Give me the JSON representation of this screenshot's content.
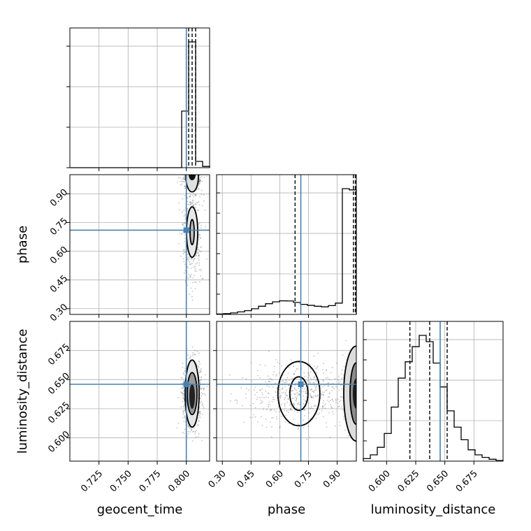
{
  "chart_data": {
    "type": "corner",
    "parameters": [
      "geocent_time",
      "phase",
      "luminosity_distance"
    ],
    "truths": {
      "geocent_time": 0.8,
      "phase": 0.71,
      "luminosity_distance": 0.646
    },
    "truth_color": "#4682b4",
    "grid": true,
    "labels": {
      "x": [
        "geocent_time",
        "phase",
        "luminosity_distance"
      ],
      "y": [
        "",
        "phase",
        "luminosity_distance"
      ]
    },
    "ticks": {
      "geocent_time": [
        "0.725",
        "0.750",
        "0.775",
        "0.800"
      ],
      "phase": [
        "0.30",
        "0.45",
        "0.60",
        "0.75",
        "0.90"
      ],
      "luminosity_distance": [
        "0.600",
        "0.625",
        "0.650",
        "0.675"
      ]
    },
    "ranges": {
      "geocent_time": [
        0.7,
        0.82
      ],
      "phase": [
        0.27,
        1.0
      ],
      "luminosity_distance": [
        0.58,
        0.7
      ]
    },
    "quantiles": {
      "geocent_time": [
        0.802,
        0.805,
        0.808
      ],
      "phase": [
        0.68,
        0.985,
        0.995
      ],
      "luminosity_distance": [
        0.62,
        0.637,
        0.652
      ]
    },
    "histograms": {
      "geocent_time": {
        "bin_edges": [
          0.7,
          0.706,
          0.712,
          0.718,
          0.724,
          0.73,
          0.736,
          0.742,
          0.748,
          0.754,
          0.76,
          0.766,
          0.772,
          0.778,
          0.784,
          0.79,
          0.796,
          0.802,
          0.808,
          0.814,
          0.82
        ],
        "counts": [
          0,
          0,
          0,
          0,
          0,
          0,
          0,
          0,
          0,
          0,
          0,
          0,
          0,
          0,
          0,
          0,
          0.45,
          1.0,
          0.05,
          0.01
        ]
      },
      "phase": {
        "bin_edges": [
          0.27,
          0.3065,
          0.343,
          0.3795,
          0.416,
          0.4525,
          0.489,
          0.5255,
          0.562,
          0.5985,
          0.635,
          0.6715,
          0.708,
          0.7445,
          0.781,
          0.8175,
          0.854,
          0.8905,
          0.927,
          0.9635,
          1.0
        ],
        "counts": [
          0.003,
          0.006,
          0.012,
          0.02,
          0.03,
          0.045,
          0.065,
          0.085,
          0.1,
          0.108,
          0.107,
          0.095,
          0.08,
          0.072,
          0.065,
          0.06,
          0.07,
          0.09,
          1.0,
          0.99
        ]
      },
      "luminosity_distance": {
        "bin_edges": [
          0.58,
          0.586,
          0.592,
          0.598,
          0.604,
          0.61,
          0.616,
          0.622,
          0.628,
          0.634,
          0.64,
          0.646,
          0.652,
          0.658,
          0.664,
          0.67,
          0.676,
          0.682,
          0.688,
          0.694,
          0.7
        ],
        "counts": [
          0.02,
          0.05,
          0.11,
          0.22,
          0.43,
          0.66,
          0.79,
          0.91,
          1.0,
          0.95,
          0.78,
          0.59,
          0.4,
          0.27,
          0.17,
          0.09,
          0.05,
          0.03,
          0.015,
          0.005
        ]
      }
    }
  }
}
